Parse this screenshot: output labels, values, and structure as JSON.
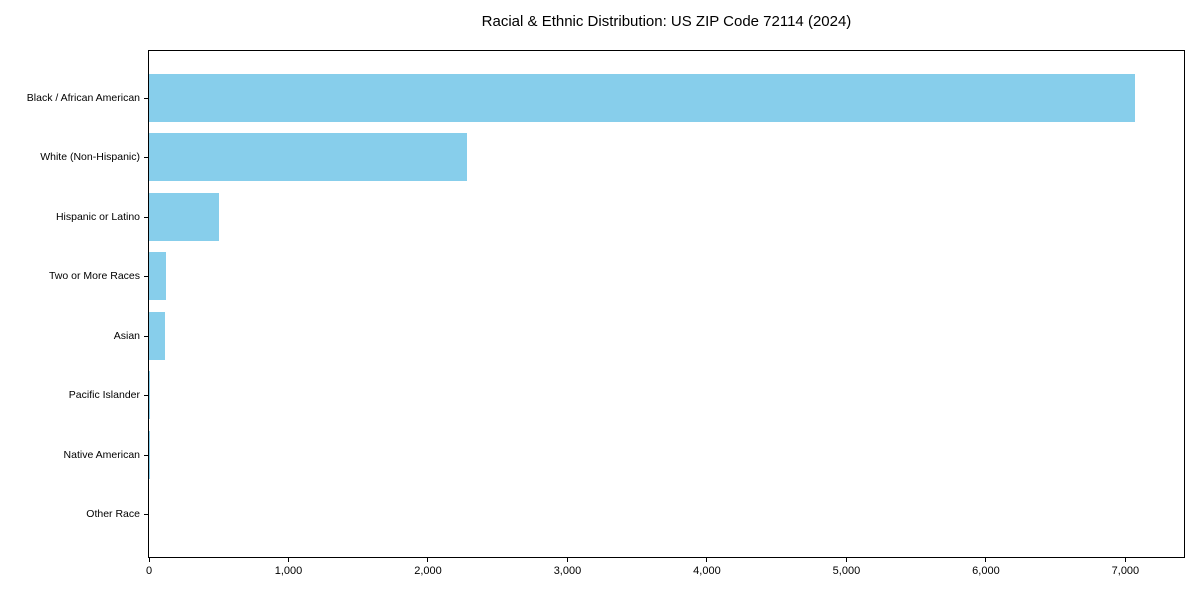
{
  "chart_data": {
    "type": "bar",
    "orientation": "horizontal",
    "title": "Racial & Ethnic Distribution: US ZIP Code 72114 (2024)",
    "categories": [
      "Black / African American",
      "White (Non-Hispanic)",
      "Hispanic or Latino",
      "Two or More Races",
      "Asian",
      "Pacific Islander",
      "Native American",
      "Other Race"
    ],
    "values": [
      7070,
      2283,
      503,
      125,
      113,
      9,
      4,
      0
    ],
    "xlabel": "",
    "ylabel": "",
    "xlim": [
      0,
      7420
    ],
    "xticks": [
      0,
      1000,
      2000,
      3000,
      4000,
      5000,
      6000,
      7000
    ],
    "xtick_labels": [
      "0",
      "1,000",
      "2,000",
      "3,000",
      "4,000",
      "5,000",
      "6,000",
      "7,000"
    ],
    "bar_color": "#87CEEB",
    "background_color": "#ffffff",
    "frame_color": "#000000",
    "grid": false,
    "legend": null
  }
}
